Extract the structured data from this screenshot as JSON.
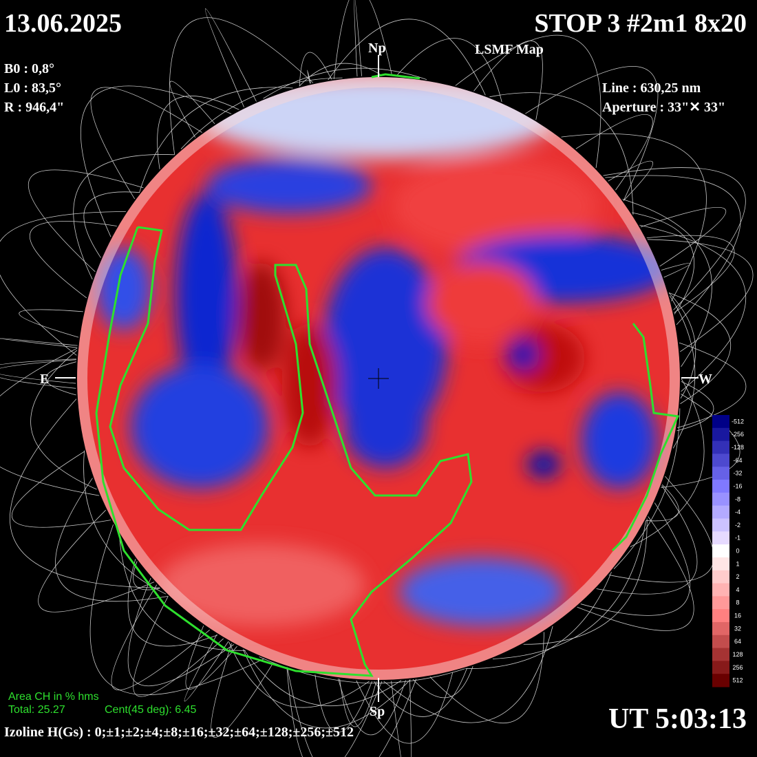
{
  "header": {
    "date": "13.06.2025",
    "title": "STOP 3 #2m1 8x20",
    "subtitle": "LSMF Map"
  },
  "params": [
    "B0 : 0,8°",
    "L0 : 83,5°",
    "R : 946,4\""
  ],
  "instrument": [
    "Line : 630,25 nm",
    "Aperture : 33\"✕ 33\""
  ],
  "compass": {
    "north": "Np",
    "south": "Sp",
    "east": "E",
    "west": "W"
  },
  "colorbar": {
    "labels": [
      "-512",
      "-256",
      "-128",
      "-64",
      "-32",
      "-16",
      "-8",
      "-4",
      "-2",
      "-1",
      "0",
      "1",
      "2",
      "4",
      "8",
      "16",
      "32",
      "64",
      "128",
      "256",
      "512"
    ]
  },
  "area": {
    "title": "Area CH in % hms",
    "total": "Total: 25.27",
    "central": "Cent(45 deg): 6.45"
  },
  "izoline": "Izoline H(Gs) : 0;±1;±2;±4;±8;±16;±32;±64;±128;±256;±512",
  "time": "UT 5:03:13"
}
